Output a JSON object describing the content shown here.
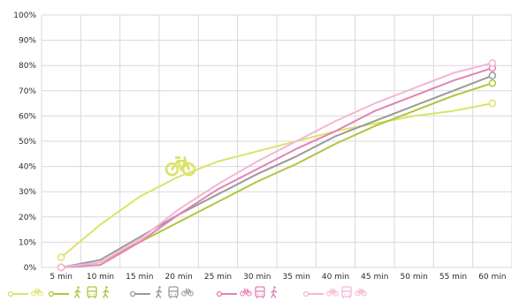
{
  "chart_data": {
    "type": "line",
    "title": "",
    "xlabel": "",
    "ylabel": "",
    "categories": [
      "5 min",
      "10 min",
      "15 min",
      "20 min",
      "25 min",
      "30 min",
      "35 min",
      "40 min",
      "45 min",
      "50 min",
      "55 min",
      "60 min"
    ],
    "ylim": [
      0,
      100
    ],
    "yticks": [
      "0%",
      "10%",
      "20%",
      "30%",
      "40%",
      "50%",
      "60%",
      "70%",
      "80%",
      "90%",
      "100%"
    ],
    "grid": true,
    "legend_position": "bottom",
    "series": [
      {
        "mode_icons": [
          "bicycle-icon"
        ],
        "color": "#dbe36a",
        "values": [
          4,
          17,
          28,
          36,
          42,
          46,
          50,
          54,
          57,
          60,
          62,
          65
        ]
      },
      {
        "mode_icons": [
          "walk-icon",
          "bus-icon",
          "walk-icon"
        ],
        "color": "#b4c33e",
        "values": [
          0,
          2,
          10,
          18,
          26,
          34,
          41,
          49,
          56,
          62,
          68,
          73
        ]
      },
      {
        "mode_icons": [
          "walk-icon",
          "bus-icon",
          "bicycle-icon"
        ],
        "color": "#9a9a9a",
        "values": [
          0,
          3,
          12,
          21,
          29,
          37,
          44,
          52,
          58,
          64,
          70,
          76
        ]
      },
      {
        "mode_icons": [
          "bicycle-icon",
          "bus-icon",
          "walk-icon"
        ],
        "color": "#e382b6",
        "values": [
          0,
          1,
          10,
          21,
          31,
          39,
          47,
          54,
          62,
          68,
          74,
          79
        ]
      },
      {
        "mode_icons": [
          "bicycle-icon",
          "bus-icon",
          "bicycle-icon"
        ],
        "color": "#f3b6d4",
        "values": [
          0,
          2,
          11,
          23,
          33,
          42,
          50,
          58,
          65,
          71,
          77,
          81
        ]
      }
    ],
    "annotation_icon": "bicycle-icon"
  }
}
